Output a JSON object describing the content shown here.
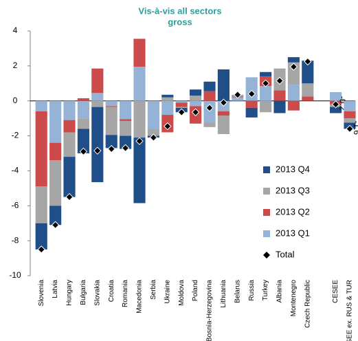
{
  "chart_data": {
    "type": "stacked-bar",
    "title": "Vis-à-vis all sectors",
    "subtitle": "gross",
    "categories": [
      "Slovenia",
      "Latvia",
      "Hungary",
      "Bulgaria",
      "Slovakia",
      "Croatia",
      "Romania",
      "Macedonia",
      "Serbia",
      "Ukraine",
      "Moldova",
      "Poland",
      "Bosnia-Herzegovina",
      "Lithuania",
      "Belarus",
      "Russia",
      "Turkey",
      "Albania",
      "Montenegro",
      "Czech Republic",
      null,
      "CESEE",
      "CESEE ex. RUS & TUR"
    ],
    "series": [
      {
        "name": "2013 Q1",
        "color": "#95b3d7",
        "values": [
          -0.6,
          -2.4,
          -1.1,
          -1.0,
          0.45,
          -0.3,
          -1.05,
          1.95,
          -1.6,
          -0.8,
          -0.1,
          -0.3,
          -1.2,
          -0.6,
          0.2,
          1.35,
          0.85,
          0,
          0.9,
          0,
          null,
          0.5,
          -0.6
        ]
      },
      {
        "name": "2013 Q2",
        "color": "#cd4a4a",
        "values": [
          -4.3,
          -1.0,
          -0.7,
          0.15,
          1.4,
          -0.05,
          -0.1,
          1.6,
          0,
          -1.0,
          -0.25,
          -1.0,
          0.55,
          -0.25,
          0.05,
          -0.4,
          0.55,
          0.6,
          -0.55,
          0.25,
          null,
          -0.2,
          -0.4
        ]
      },
      {
        "name": "2013 Q3",
        "color": "#a6a6a6",
        "values": [
          -2.1,
          -2.6,
          -1.4,
          -0.6,
          -0.35,
          -1.6,
          -0.85,
          -2.1,
          -0.4,
          0.2,
          -0.05,
          0.3,
          -0.3,
          -1.05,
          0.1,
          0,
          -0.65,
          1.25,
          1.3,
          0.75,
          null,
          -0.15,
          -0.25
        ]
      },
      {
        "name": "2013 Q4",
        "color": "#1f4e89",
        "values": [
          -1.5,
          -1.1,
          -2.3,
          -1.4,
          -4.3,
          -0.75,
          -0.75,
          -3.75,
          -0.1,
          0.15,
          -0.25,
          0.35,
          0.55,
          1.8,
          0,
          -0.55,
          0.25,
          -0.7,
          0.3,
          1.3,
          null,
          -0.35,
          -0.35
        ]
      }
    ],
    "total": {
      "name": "Total",
      "color": "#000000",
      "values": [
        -8.5,
        -7.1,
        -5.5,
        -2.9,
        -2.85,
        -2.75,
        -2.7,
        -2.3,
        -2.1,
        -1.45,
        -0.65,
        -0.65,
        -0.4,
        -0.1,
        0.35,
        0.4,
        1.0,
        1.15,
        1.95,
        2.25,
        null,
        -0.2,
        -1.6
      ],
      "value_labels": [
        null,
        null,
        null,
        null,
        null,
        null,
        null,
        null,
        null,
        null,
        null,
        null,
        null,
        null,
        null,
        null,
        null,
        null,
        null,
        null,
        null,
        "-0.2",
        "-1.6"
      ]
    },
    "ylim": [
      -10,
      4
    ],
    "yticks": [
      4,
      2,
      0,
      -2,
      -4,
      -6,
      -8,
      -10
    ],
    "legend": "inside-right"
  }
}
